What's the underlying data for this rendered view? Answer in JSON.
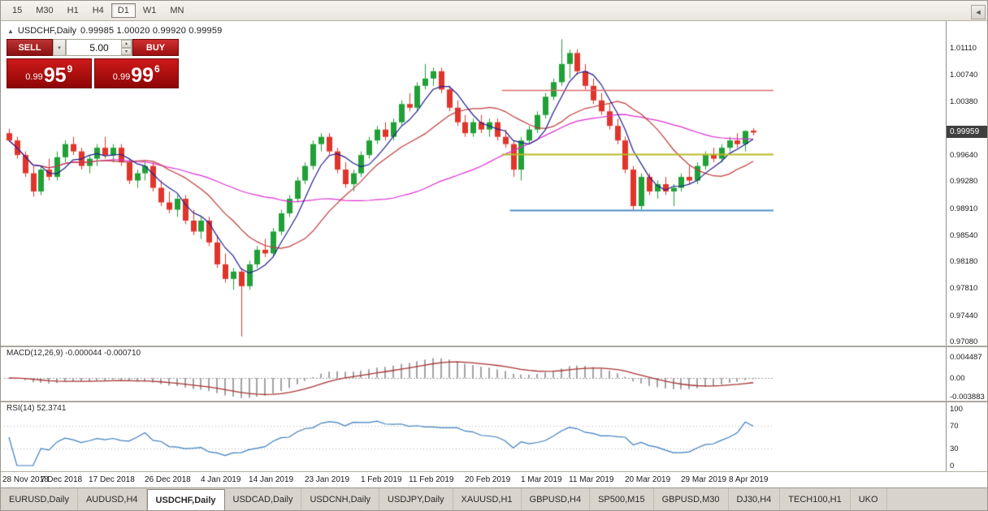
{
  "toolbar": {
    "timeframes": [
      {
        "label": "15",
        "active": false
      },
      {
        "label": "M30",
        "active": false
      },
      {
        "label": "H1",
        "active": false
      },
      {
        "label": "H4",
        "active": false
      },
      {
        "label": "D1",
        "active": true
      },
      {
        "label": "W1",
        "active": false
      },
      {
        "label": "MN",
        "active": false
      }
    ]
  },
  "icons": {
    "header": "▲",
    "dropdown": "▾",
    "spin_up": "▴",
    "spin_down": "▾",
    "scroll_left": "◄"
  },
  "chart": {
    "header": {
      "symbol": "USDCHF,Daily",
      "ohlc": "0.99985 1.00020 0.99920 0.99959"
    },
    "trade": {
      "sell_label": "SELL",
      "buy_label": "BUY",
      "volume": "5.00",
      "bid": {
        "prefix": "0.99",
        "big": "95",
        "sup": "9"
      },
      "ask": {
        "prefix": "0.99",
        "big": "99",
        "sup": "6"
      }
    },
    "price_scale": {
      "labels": [
        "1.01110",
        "1.00740",
        "1.00380",
        "0.99640",
        "0.99280",
        "0.98910",
        "0.98540",
        "0.98180",
        "0.97810",
        "0.97440",
        "0.97080"
      ],
      "current": "0.99959"
    }
  },
  "chart_data": {
    "type": "candlestick",
    "symbol": "USDCHF",
    "timeframe": "Daily",
    "y_axis": {
      "min": 0.9708,
      "max": 1.0111
    },
    "x_labels": [
      "28 Nov 2018",
      "7 Dec 2018",
      "17 Dec 2018",
      "26 Dec 2018",
      "4 Jan 2019",
      "14 Jan 2019",
      "23 Jan 2019",
      "1 Feb 2019",
      "11 Feb 2019",
      "20 Feb 2019",
      "1 Mar 2019",
      "11 Mar 2019",
      "20 Mar 2019",
      "29 Mar 2019",
      "8 Apr 2019"
    ],
    "x_label_indices": [
      0,
      7,
      13,
      20,
      27,
      33,
      40,
      47,
      53,
      60,
      67,
      73,
      80,
      87,
      93
    ],
    "colors": {
      "up": "#21a038",
      "down": "#e0352b",
      "ma_fast": "#1f1f8f",
      "ma_mid": "#c23b3b",
      "ma_slow": "#dd2fd3"
    },
    "moving_averages": [
      {
        "period": 5,
        "color": "#1f1f8f"
      },
      {
        "period": 13,
        "color": "#c23b3b"
      },
      {
        "period": 34,
        "color": "#dd2fd3"
      }
    ],
    "hlines": [
      {
        "price": 1.0054,
        "color": "#e06a6a",
        "width": 1.6,
        "from_index": 62
      },
      {
        "price": 0.9966,
        "color": "#b9b923",
        "width": 2,
        "from_index": 62
      },
      {
        "price": 0.9889,
        "color": "#4a8fc7",
        "width": 2,
        "from_index": 63
      }
    ],
    "current_price": 0.99959,
    "candles": [
      [
        0.9995,
        1.0001,
        0.9983,
        0.9985
      ],
      [
        0.9985,
        0.999,
        0.996,
        0.9965
      ],
      [
        0.9965,
        0.997,
        0.9935,
        0.994
      ],
      [
        0.994,
        0.995,
        0.9908,
        0.9915
      ],
      [
        0.9915,
        0.995,
        0.991,
        0.9945
      ],
      [
        0.9945,
        0.996,
        0.993,
        0.9935
      ],
      [
        0.9935,
        0.997,
        0.993,
        0.9962
      ],
      [
        0.9962,
        0.9985,
        0.9955,
        0.998
      ],
      [
        0.998,
        0.999,
        0.9965,
        0.997
      ],
      [
        0.997,
        0.9975,
        0.9945,
        0.995
      ],
      [
        0.995,
        0.9965,
        0.994,
        0.996
      ],
      [
        0.996,
        0.998,
        0.995,
        0.9975
      ],
      [
        0.9975,
        0.999,
        0.996,
        0.9965
      ],
      [
        0.9965,
        0.998,
        0.9955,
        0.9975
      ],
      [
        0.9975,
        0.998,
        0.995,
        0.9955
      ],
      [
        0.9955,
        0.996,
        0.9925,
        0.993
      ],
      [
        0.993,
        0.9945,
        0.992,
        0.994
      ],
      [
        0.994,
        0.9955,
        0.993,
        0.995
      ],
      [
        0.995,
        0.9955,
        0.9915,
        0.992
      ],
      [
        0.992,
        0.993,
        0.9895,
        0.99
      ],
      [
        0.99,
        0.9915,
        0.9885,
        0.989
      ],
      [
        0.989,
        0.991,
        0.988,
        0.9905
      ],
      [
        0.9905,
        0.991,
        0.987,
        0.9875
      ],
      [
        0.9875,
        0.989,
        0.9855,
        0.986
      ],
      [
        0.986,
        0.988,
        0.985,
        0.9875
      ],
      [
        0.9875,
        0.988,
        0.984,
        0.9845
      ],
      [
        0.9845,
        0.9855,
        0.981,
        0.9815
      ],
      [
        0.9815,
        0.983,
        0.979,
        0.9795
      ],
      [
        0.9795,
        0.981,
        0.978,
        0.9805
      ],
      [
        0.9805,
        0.981,
        0.9716,
        0.9785
      ],
      [
        0.9785,
        0.982,
        0.978,
        0.9815
      ],
      [
        0.9815,
        0.984,
        0.981,
        0.9835
      ],
      [
        0.9835,
        0.985,
        0.9825,
        0.983
      ],
      [
        0.983,
        0.9865,
        0.9825,
        0.986
      ],
      [
        0.986,
        0.989,
        0.9855,
        0.9885
      ],
      [
        0.9885,
        0.991,
        0.988,
        0.9905
      ],
      [
        0.9905,
        0.9935,
        0.99,
        0.993
      ],
      [
        0.993,
        0.9955,
        0.9925,
        0.995
      ],
      [
        0.995,
        0.9985,
        0.9945,
        0.998
      ],
      [
        0.998,
        0.9995,
        0.997,
        0.999
      ],
      [
        0.999,
        0.9995,
        0.9965,
        0.997
      ],
      [
        0.997,
        0.9975,
        0.994,
        0.9945
      ],
      [
        0.9945,
        0.9955,
        0.992,
        0.9925
      ],
      [
        0.9925,
        0.9945,
        0.9915,
        0.994
      ],
      [
        0.994,
        0.997,
        0.9935,
        0.9965
      ],
      [
        0.9965,
        0.999,
        0.996,
        0.9985
      ],
      [
        0.9985,
        1.0005,
        0.998,
        1.0
      ],
      [
        1.0,
        1.001,
        0.9985,
        0.999
      ],
      [
        0.999,
        1.0015,
        0.9985,
        1.001
      ],
      [
        1.001,
        1.004,
        1.0005,
        1.0035
      ],
      [
        1.0035,
        1.005,
        1.0025,
        1.003
      ],
      [
        1.003,
        1.0065,
        1.0025,
        1.006
      ],
      [
        1.006,
        1.009,
        1.0055,
        1.007
      ],
      [
        1.007,
        1.0085,
        1.006,
        1.008
      ],
      [
        1.008,
        1.0085,
        1.005,
        1.0055
      ],
      [
        1.0055,
        1.006,
        1.0025,
        1.003
      ],
      [
        1.003,
        1.004,
        1.0005,
        1.001
      ],
      [
        1.001,
        1.002,
        0.999,
        0.9995
      ],
      [
        0.9995,
        1.0015,
        0.999,
        1.001
      ],
      [
        1.001,
        1.002,
        0.9995,
        1.0
      ],
      [
        1.0,
        1.0015,
        0.999,
        1.001
      ],
      [
        1.001,
        1.0015,
        0.9985,
        0.999
      ],
      [
        0.999,
        1.0,
        0.9975,
        0.998
      ],
      [
        0.998,
        0.9985,
        0.9935,
        0.9945
      ],
      [
        0.9945,
        0.999,
        0.993,
        0.9985
      ],
      [
        0.9985,
        1.0005,
        0.998,
        1.0
      ],
      [
        1.0,
        1.0025,
        0.9995,
        1.002
      ],
      [
        1.002,
        1.005,
        1.0015,
        1.0045
      ],
      [
        1.0045,
        1.007,
        1.004,
        1.0065
      ],
      [
        1.0065,
        1.0124,
        1.006,
        1.009
      ],
      [
        1.009,
        1.011,
        1.007,
        1.0105
      ],
      [
        1.0105,
        1.011,
        1.0075,
        1.008
      ],
      [
        1.008,
        1.009,
        1.0055,
        1.006
      ],
      [
        1.006,
        1.007,
        1.0035,
        1.004
      ],
      [
        1.004,
        1.005,
        1.002,
        1.0025
      ],
      [
        1.0025,
        1.0035,
        1.0,
        1.0005
      ],
      [
        1.0005,
        1.0015,
        0.998,
        0.9985
      ],
      [
        0.9985,
        0.999,
        0.994,
        0.9945
      ],
      [
        0.9945,
        0.995,
        0.989,
        0.9895
      ],
      [
        0.9895,
        0.994,
        0.989,
        0.9935
      ],
      [
        0.9935,
        0.994,
        0.991,
        0.9915
      ],
      [
        0.9915,
        0.993,
        0.9905,
        0.9925
      ],
      [
        0.9925,
        0.9935,
        0.991,
        0.9915
      ],
      [
        0.9915,
        0.9925,
        0.9895,
        0.992
      ],
      [
        0.992,
        0.994,
        0.9915,
        0.9935
      ],
      [
        0.9935,
        0.995,
        0.9925,
        0.993
      ],
      [
        0.993,
        0.9955,
        0.9925,
        0.995
      ],
      [
        0.995,
        0.997,
        0.9945,
        0.9965
      ],
      [
        0.9965,
        0.9975,
        0.9955,
        0.996
      ],
      [
        0.996,
        0.998,
        0.9955,
        0.9975
      ],
      [
        0.9975,
        0.999,
        0.997,
        0.9985
      ],
      [
        0.9985,
        0.9995,
        0.9975,
        0.998
      ],
      [
        0.998,
        0.9999,
        0.997,
        0.9998
      ],
      [
        0.99985,
        1.0002,
        0.9992,
        0.99959
      ]
    ],
    "indicators": [
      {
        "type": "MACD",
        "params": [
          12,
          26,
          9
        ],
        "label": "MACD(12,26,9) -0.000044 -0.000710",
        "scale_labels": [
          "0.004487",
          "0.00",
          "-0.003883"
        ],
        "histogram_color": "#a3a3a3",
        "signal_color": "#a83232"
      },
      {
        "type": "RSI",
        "params": [
          14
        ],
        "label": "RSI(14) 52.3741",
        "scale_labels": [
          "100",
          "70",
          "30",
          "0"
        ],
        "line_color": "#3d7ebf",
        "levels": [
          70,
          30
        ]
      }
    ]
  },
  "tabs": {
    "items": [
      {
        "label": "EURUSD,Daily",
        "active": false
      },
      {
        "label": "AUDUSD,H4",
        "active": false
      },
      {
        "label": "USDCHF,Daily",
        "active": true
      },
      {
        "label": "USDCAD,Daily",
        "active": false
      },
      {
        "label": "USDCNH,Daily",
        "active": false
      },
      {
        "label": "USDJPY,Daily",
        "active": false
      },
      {
        "label": "XAUUSD,H1",
        "active": false
      },
      {
        "label": "GBPUSD,H4",
        "active": false
      },
      {
        "label": "SP500,M15",
        "active": false
      },
      {
        "label": "GBPUSD,M30",
        "active": false
      },
      {
        "label": "DJ30,H4",
        "active": false
      },
      {
        "label": "TECH100,H1",
        "active": false
      },
      {
        "label": "UKO",
        "active": false
      }
    ]
  }
}
